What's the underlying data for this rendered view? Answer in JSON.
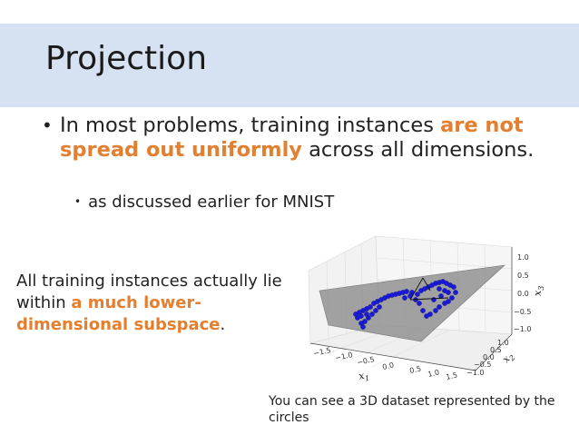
{
  "slide": {
    "title": "Projection",
    "bullet1": {
      "part1": "In most problems, training instances ",
      "highlight": "are not spread out uniformly",
      "part2": " across all dimensions."
    },
    "bullet2": "as discussed earlier for MNIST",
    "side_text": {
      "part1": "All training instances actually lie within ",
      "highlight": "a much lower-dimensional subspace",
      "part2": "."
    },
    "caption": "You can see a 3D dataset represented by the circles",
    "highlight_color": "#e37f2f",
    "title_bar_color": "#d6e1f1"
  },
  "chart_data": {
    "type": "scatter",
    "projection": "3d",
    "axis_labels": {
      "x": "x",
      "x_sub": "1",
      "y": "x",
      "y_sub": "2",
      "z": "x",
      "z_sub": "3"
    },
    "x_ticks": [
      "−1.5",
      "−1.0",
      "−0.5",
      "0.0",
      "0.5",
      "1.0",
      "1.5"
    ],
    "y_ticks": [
      "−1.0",
      "−0.5",
      "0.0",
      "0.5",
      "1.0"
    ],
    "z_ticks": [
      "−1.0",
      "−0.5",
      "0.0",
      "0.5",
      "1.0"
    ],
    "point_color": "#1a1ad9",
    "plane_color": "#9a9a9a",
    "grid": true
  }
}
